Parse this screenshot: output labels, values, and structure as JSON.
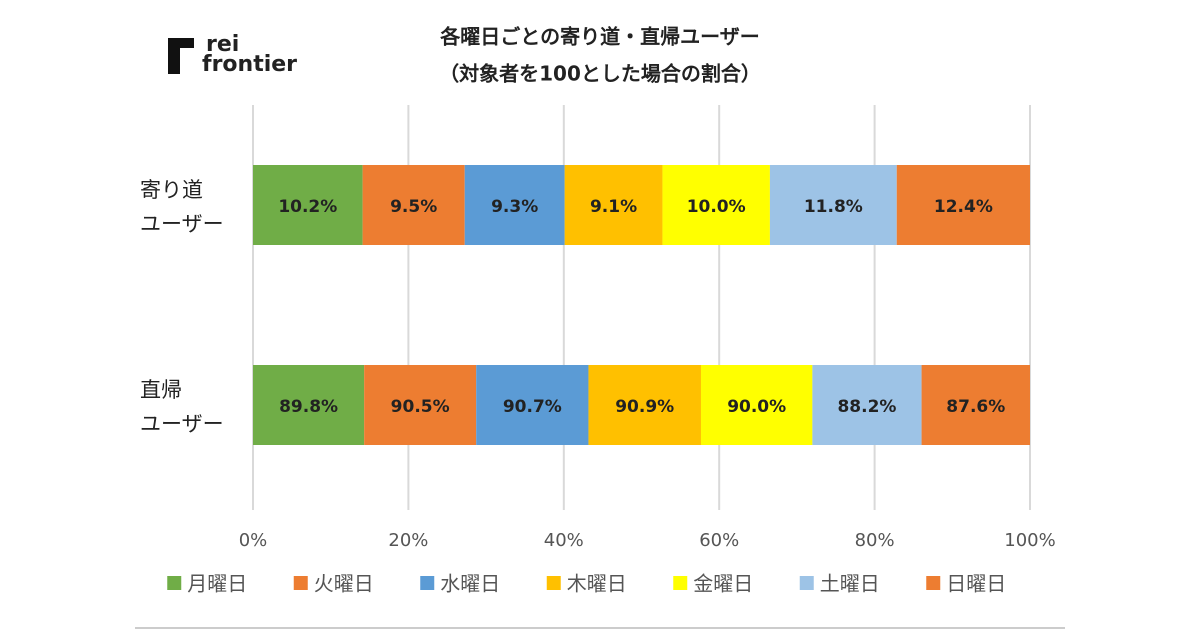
{
  "logo": [
    "rei",
    "frontier"
  ],
  "chart_data": {
    "type": "bar",
    "orientation": "horizontal",
    "stacking": "percent",
    "title": "各曜日ごとの寄り道・直帰ユーザー",
    "subtitle": "（対象者を100とした場合の割合）",
    "categories": [
      [
        "寄り道",
        "ユーザー"
      ],
      [
        "直帰",
        "ユーザー"
      ]
    ],
    "xlim": [
      0,
      100
    ],
    "xticks": [
      {
        "value": 0,
        "label": "0%"
      },
      {
        "value": 20,
        "label": "20%"
      },
      {
        "value": 40,
        "label": "40%"
      },
      {
        "value": 60,
        "label": "60%"
      },
      {
        "value": 80,
        "label": "80%"
      },
      {
        "value": 100,
        "label": "100%"
      }
    ],
    "grid": true,
    "legend": "bottom",
    "series": [
      {
        "name": "月曜日",
        "color": "#70ad47",
        "values": [
          10.2,
          89.8
        ],
        "value_labels": [
          "10.2%",
          "89.8%"
        ]
      },
      {
        "name": "火曜日",
        "color": "#ed7d31",
        "values": [
          9.5,
          90.5
        ],
        "value_labels": [
          "9.5%",
          "90.5%"
        ]
      },
      {
        "name": "水曜日",
        "color": "#5b9bd5",
        "values": [
          9.3,
          90.7
        ],
        "value_labels": [
          "9.3%",
          "90.7%"
        ]
      },
      {
        "name": "木曜日",
        "color": "#ffc000",
        "values": [
          9.1,
          90.9
        ],
        "value_labels": [
          "9.1%",
          "90.9%"
        ]
      },
      {
        "name": "金曜日",
        "color": "#ffff00",
        "values": [
          10.0,
          90.0
        ],
        "value_labels": [
          "10.0%",
          "90.0%"
        ]
      },
      {
        "name": "土曜日",
        "color": "#9dc3e6",
        "values": [
          11.8,
          88.2
        ],
        "value_labels": [
          "11.8%",
          "88.2%"
        ]
      },
      {
        "name": "日曜日",
        "color": "#ed7d31",
        "values": [
          12.4,
          87.6
        ],
        "value_labels": [
          "12.4%",
          "87.6%"
        ]
      }
    ]
  }
}
